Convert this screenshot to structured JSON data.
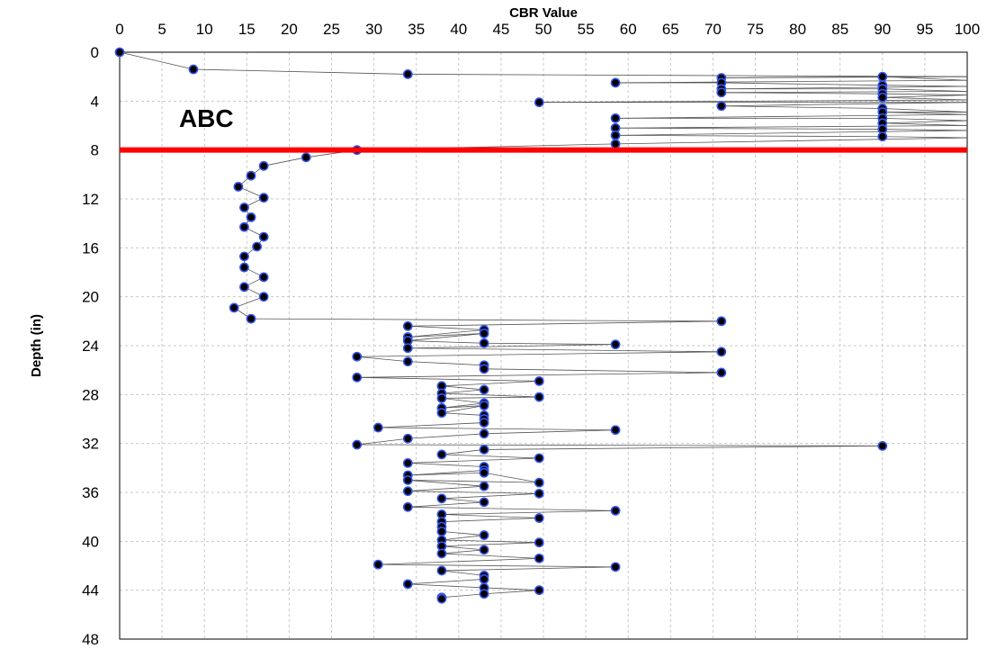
{
  "chart_data": {
    "type": "scatter",
    "title": "",
    "xlabel": "CBR Value",
    "ylabel": "Depth (in)",
    "xlim": [
      0,
      100
    ],
    "ylim": [
      0,
      48
    ],
    "y_inverted": true,
    "x_axis_position": "top",
    "x_ticks": [
      0,
      5,
      10,
      15,
      20,
      25,
      30,
      35,
      40,
      45,
      50,
      55,
      60,
      65,
      70,
      75,
      80,
      85,
      90,
      95,
      100
    ],
    "y_ticks": [
      0,
      4,
      8,
      12,
      16,
      20,
      24,
      28,
      32,
      36,
      40,
      44,
      48
    ],
    "grid": true,
    "marker_fill": "#000000",
    "marker_edge": "#3355ee",
    "line_color": "#555555",
    "annotation": {
      "text": "ABC",
      "x": 7,
      "y": 6.1
    },
    "reference_line": {
      "y": 8,
      "color": "#ff0000"
    },
    "series": [
      {
        "points": [
          [
            0,
            0
          ],
          [
            8.7,
            1.4
          ],
          [
            34,
            1.8
          ],
          [
            100,
            2.0
          ],
          [
            71,
            2.1
          ],
          [
            90,
            2.0
          ],
          [
            100,
            2.3
          ],
          [
            58.5,
            2.5
          ],
          [
            71,
            2.5
          ],
          [
            90,
            2.7
          ],
          [
            100,
            2.8
          ],
          [
            71,
            3.0
          ],
          [
            90,
            3.0
          ],
          [
            100,
            3.2
          ],
          [
            71,
            3.3
          ],
          [
            90,
            3.4
          ],
          [
            100,
            3.5
          ],
          [
            90,
            3.7
          ],
          [
            100,
            3.9
          ],
          [
            49.5,
            4.1
          ],
          [
            100,
            4.1
          ],
          [
            71,
            4.4
          ],
          [
            90,
            4.6
          ],
          [
            100,
            4.9
          ],
          [
            90,
            4.9
          ],
          [
            100,
            5.1
          ],
          [
            58.5,
            5.4
          ],
          [
            90,
            5.4
          ],
          [
            100,
            5.6
          ],
          [
            90,
            5.8
          ],
          [
            100,
            6.0
          ],
          [
            58.5,
            6.2
          ],
          [
            90,
            6.3
          ],
          [
            100,
            6.4
          ],
          [
            58.5,
            6.8
          ],
          [
            90,
            6.9
          ],
          [
            100,
            7.0
          ],
          [
            58.5,
            7.5
          ],
          [
            28,
            8.0
          ],
          [
            22,
            8.6
          ],
          [
            17,
            9.3
          ],
          [
            15.5,
            10.1
          ],
          [
            14,
            11.0
          ],
          [
            17,
            11.9
          ],
          [
            14.7,
            12.7
          ],
          [
            15.5,
            13.5
          ],
          [
            14.7,
            14.3
          ],
          [
            17,
            15.1
          ],
          [
            16.2,
            15.9
          ],
          [
            14.7,
            16.7
          ],
          [
            14.7,
            17.6
          ],
          [
            17,
            18.4
          ],
          [
            14.7,
            19.2
          ],
          [
            17,
            20.0
          ],
          [
            13.5,
            20.9
          ],
          [
            15.5,
            21.8
          ],
          [
            71,
            22.0
          ],
          [
            34,
            22.4
          ],
          [
            43,
            22.7
          ],
          [
            34,
            23.3
          ],
          [
            43,
            23.0
          ],
          [
            34,
            23.6
          ],
          [
            43,
            23.8
          ],
          [
            58.5,
            23.9
          ],
          [
            34,
            24.2
          ],
          [
            71,
            24.5
          ],
          [
            28,
            24.9
          ],
          [
            34,
            25.3
          ],
          [
            43,
            25.6
          ],
          [
            43,
            25.9
          ],
          [
            71,
            26.2
          ],
          [
            28,
            26.6
          ],
          [
            49.5,
            26.9
          ],
          [
            38,
            27.3
          ],
          [
            43,
            27.6
          ],
          [
            38,
            27.9
          ],
          [
            49.5,
            28.2
          ],
          [
            38,
            28.3
          ],
          [
            43,
            28.7
          ],
          [
            38,
            29.1
          ],
          [
            43,
            28.9
          ],
          [
            38,
            29.5
          ],
          [
            43,
            29.7
          ],
          [
            43,
            30.0
          ],
          [
            43,
            30.3
          ],
          [
            30.5,
            30.7
          ],
          [
            58.5,
            30.9
          ],
          [
            43,
            31.2
          ],
          [
            34,
            31.6
          ],
          [
            28,
            32.1
          ],
          [
            90,
            32.2
          ],
          [
            43,
            32.5
          ],
          [
            38,
            32.9
          ],
          [
            49.5,
            33.2
          ],
          [
            34,
            33.6
          ],
          [
            43,
            33.9
          ],
          [
            43,
            34.2
          ],
          [
            34,
            34.6
          ],
          [
            43,
            34.4
          ],
          [
            49.5,
            35.2
          ],
          [
            34,
            35.0
          ],
          [
            43,
            35.5
          ],
          [
            34,
            35.9
          ],
          [
            49.5,
            36.1
          ],
          [
            38,
            36.5
          ],
          [
            43,
            36.8
          ],
          [
            34,
            37.2
          ],
          [
            58.5,
            37.5
          ],
          [
            38,
            37.8
          ],
          [
            49.5,
            38.1
          ],
          [
            38,
            38.4
          ],
          [
            38,
            38.8
          ],
          [
            38,
            39.2
          ],
          [
            43,
            39.5
          ],
          [
            38,
            39.9
          ],
          [
            49.5,
            40.1
          ],
          [
            38,
            40.4
          ],
          [
            43,
            40.7
          ],
          [
            38,
            41.0
          ],
          [
            49.5,
            41.4
          ],
          [
            30.5,
            41.9
          ],
          [
            58.5,
            42.1
          ],
          [
            38,
            42.4
          ],
          [
            43,
            42.8
          ],
          [
            43,
            43.1
          ],
          [
            34,
            43.5
          ],
          [
            43,
            43.8
          ],
          [
            49.5,
            44.0
          ],
          [
            43,
            44.3
          ],
          [
            38,
            44.6
          ],
          [
            38,
            44.7
          ]
        ]
      }
    ]
  }
}
